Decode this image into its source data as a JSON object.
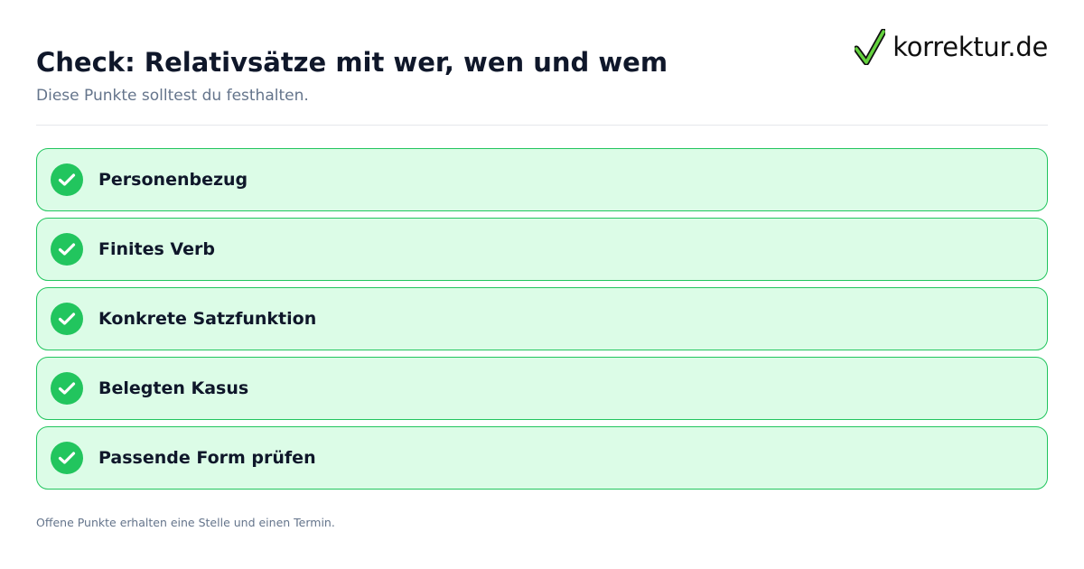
{
  "header": {
    "title": "Check: Relativsätze mit wer, wen und wem",
    "subtitle": "Diese Punkte solltest du festhalten."
  },
  "logo": {
    "text": "korrektur.de",
    "icon": "checkmark-icon",
    "check_color": "#65d33f",
    "outline_color": "#111111"
  },
  "checklist": {
    "check_color": "#22c55e",
    "items": [
      {
        "label": "Personenbezug",
        "checked": true
      },
      {
        "label": "Finites Verb",
        "checked": true
      },
      {
        "label": "Konkrete Satzfunktion",
        "checked": true
      },
      {
        "label": "Belegten Kasus",
        "checked": true
      },
      {
        "label": "Passende Form prüfen",
        "checked": true
      }
    ]
  },
  "footer": {
    "note": "Offene Punkte erhalten eine Stelle und einen Termin."
  }
}
